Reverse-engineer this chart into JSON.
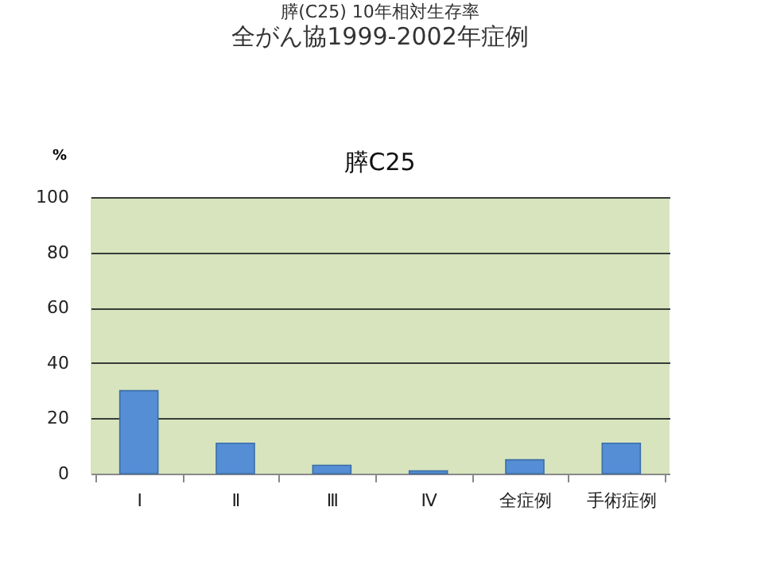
{
  "chart_data": {
    "type": "bar",
    "title": "膵(C25) 10年相対生存率",
    "subtitle": "全がん協1999-2002年症例",
    "annotations": [
      "膵C25"
    ],
    "ylabel": "%",
    "categories": [
      "Ⅰ",
      "Ⅱ",
      "Ⅲ",
      "Ⅳ",
      "全症例",
      "手術症例"
    ],
    "values": [
      30,
      11,
      3,
      1,
      5,
      11
    ],
    "color": "#558ed5",
    "ylim": [
      0,
      100
    ],
    "yticks": [
      0,
      20,
      40,
      60,
      80,
      100
    ],
    "grid": "y"
  }
}
